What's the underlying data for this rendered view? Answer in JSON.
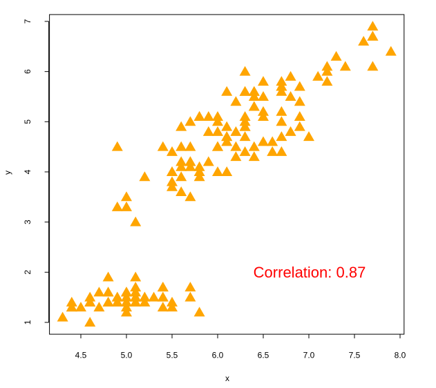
{
  "chart_data": {
    "type": "scatter",
    "xlabel": "x",
    "ylabel": "y",
    "annotation": "Correlation: 0.87",
    "color": "#ffa500",
    "annotation_color": "#ff0000",
    "xlim": [
      4.156,
      8.044
    ],
    "ylim": [
      0.764,
      7.136
    ],
    "xticks": [
      4.5,
      {
        "value": 5,
        "label": "5.0"
      },
      5.5,
      {
        "value": 6,
        "label": "6.0"
      },
      6.5,
      {
        "value": 7,
        "label": "7.0"
      },
      7.5,
      {
        "value": 8,
        "label": "8.0"
      }
    ],
    "yticks": [
      1,
      2,
      3,
      4,
      5,
      6,
      7
    ],
    "x": [
      5.1,
      4.9,
      4.7,
      4.6,
      5.0,
      5.4,
      4.6,
      5.0,
      4.4,
      4.9,
      5.4,
      4.8,
      4.8,
      4.3,
      5.8,
      5.7,
      5.4,
      5.1,
      5.7,
      5.1,
      5.4,
      5.1,
      4.6,
      5.1,
      4.8,
      5.0,
      5.0,
      5.2,
      5.2,
      4.7,
      4.8,
      5.4,
      5.2,
      5.5,
      4.9,
      5.0,
      5.5,
      4.9,
      4.4,
      5.1,
      5.0,
      4.5,
      4.4,
      5.0,
      5.1,
      4.8,
      5.1,
      4.6,
      5.3,
      5.0,
      7.0,
      6.4,
      6.9,
      5.5,
      6.5,
      5.7,
      6.3,
      4.9,
      6.6,
      5.2,
      5.0,
      5.9,
      6.0,
      6.1,
      5.6,
      6.7,
      5.6,
      5.8,
      6.2,
      5.6,
      5.9,
      6.1,
      6.3,
      6.1,
      6.4,
      6.6,
      6.8,
      6.7,
      6.0,
      5.7,
      5.5,
      5.5,
      5.8,
      6.0,
      5.4,
      6.0,
      6.7,
      6.3,
      5.6,
      5.5,
      5.5,
      6.1,
      5.8,
      5.0,
      5.6,
      5.7,
      5.7,
      6.2,
      5.1,
      5.7,
      6.3,
      5.8,
      7.1,
      6.3,
      6.5,
      7.6,
      4.9,
      7.3,
      6.7,
      7.2,
      6.5,
      6.4,
      6.8,
      5.7,
      5.8,
      6.4,
      6.5,
      7.7,
      7.7,
      6.0,
      6.9,
      5.6,
      7.7,
      6.3,
      6.7,
      7.2,
      6.2,
      6.1,
      6.4,
      7.2,
      7.4,
      7.9,
      6.4,
      6.3,
      6.1,
      7.7,
      6.3,
      6.4,
      6.0,
      6.9,
      6.7,
      6.9,
      5.8,
      6.8,
      6.7,
      6.7,
      6.3,
      6.5,
      6.2,
      5.9
    ],
    "values": [
      1.4,
      1.4,
      1.3,
      1.5,
      1.4,
      1.7,
      1.4,
      1.5,
      1.4,
      1.5,
      1.5,
      1.6,
      1.4,
      1.1,
      1.2,
      1.5,
      1.3,
      1.4,
      1.7,
      1.5,
      1.7,
      1.5,
      1.0,
      1.7,
      1.9,
      1.6,
      1.6,
      1.5,
      1.4,
      1.6,
      1.6,
      1.5,
      1.5,
      1.4,
      1.5,
      1.2,
      1.3,
      1.4,
      1.3,
      1.5,
      1.3,
      1.3,
      1.3,
      1.6,
      1.9,
      1.4,
      1.6,
      1.4,
      1.5,
      1.4,
      4.7,
      4.5,
      4.9,
      4.0,
      4.6,
      4.5,
      4.7,
      3.3,
      4.6,
      3.9,
      3.5,
      4.2,
      4.0,
      4.7,
      3.6,
      4.4,
      4.5,
      4.1,
      4.5,
      3.9,
      4.8,
      4.0,
      4.9,
      4.7,
      4.3,
      4.4,
      4.8,
      5.0,
      4.5,
      3.5,
      3.8,
      3.7,
      3.9,
      5.1,
      4.5,
      4.5,
      4.7,
      4.4,
      4.1,
      4.0,
      4.4,
      4.6,
      4.0,
      3.3,
      4.2,
      4.2,
      4.2,
      4.3,
      3.0,
      4.1,
      6.0,
      5.1,
      5.9,
      5.6,
      5.8,
      6.6,
      4.5,
      6.3,
      5.8,
      6.1,
      5.1,
      5.3,
      5.5,
      5.0,
      5.1,
      5.3,
      5.5,
      6.7,
      6.9,
      5.0,
      5.7,
      4.9,
      6.7,
      4.9,
      5.7,
      6.0,
      4.8,
      4.9,
      5.6,
      5.8,
      6.1,
      6.4,
      5.6,
      5.1,
      5.6,
      6.1,
      5.6,
      5.5,
      4.8,
      5.4,
      5.6,
      5.1,
      5.1,
      5.9,
      5.7,
      5.2,
      5.0,
      5.2,
      5.4,
      5.1
    ]
  }
}
